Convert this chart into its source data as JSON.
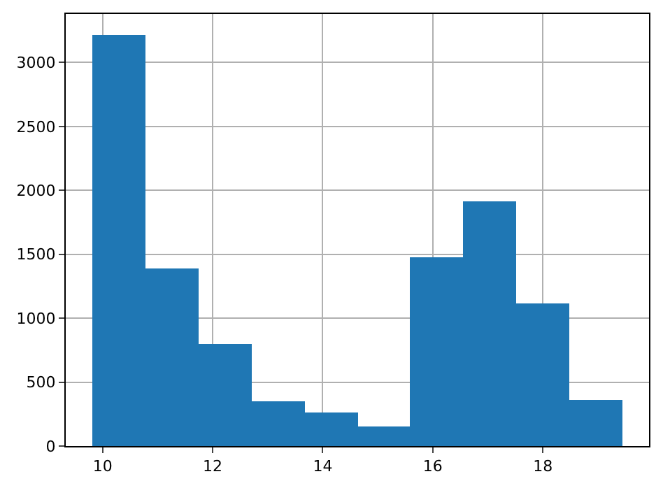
{
  "chart_data": {
    "type": "histogram",
    "bins": [
      9.81,
      10.77,
      11.74,
      12.7,
      13.67,
      14.63,
      15.59,
      16.56,
      17.52,
      18.49,
      19.45
    ],
    "values": [
      3220,
      1390,
      800,
      350,
      265,
      155,
      1480,
      1910,
      1120,
      365
    ],
    "color": "#1f77b4",
    "xlim": [
      9.33,
      19.93
    ],
    "xticks": [
      10,
      12,
      14,
      16,
      18
    ],
    "ylim": [
      0,
      3380
    ],
    "yticks": [
      0,
      500,
      1000,
      1500,
      2000,
      2500,
      3000
    ],
    "grid": true
  }
}
